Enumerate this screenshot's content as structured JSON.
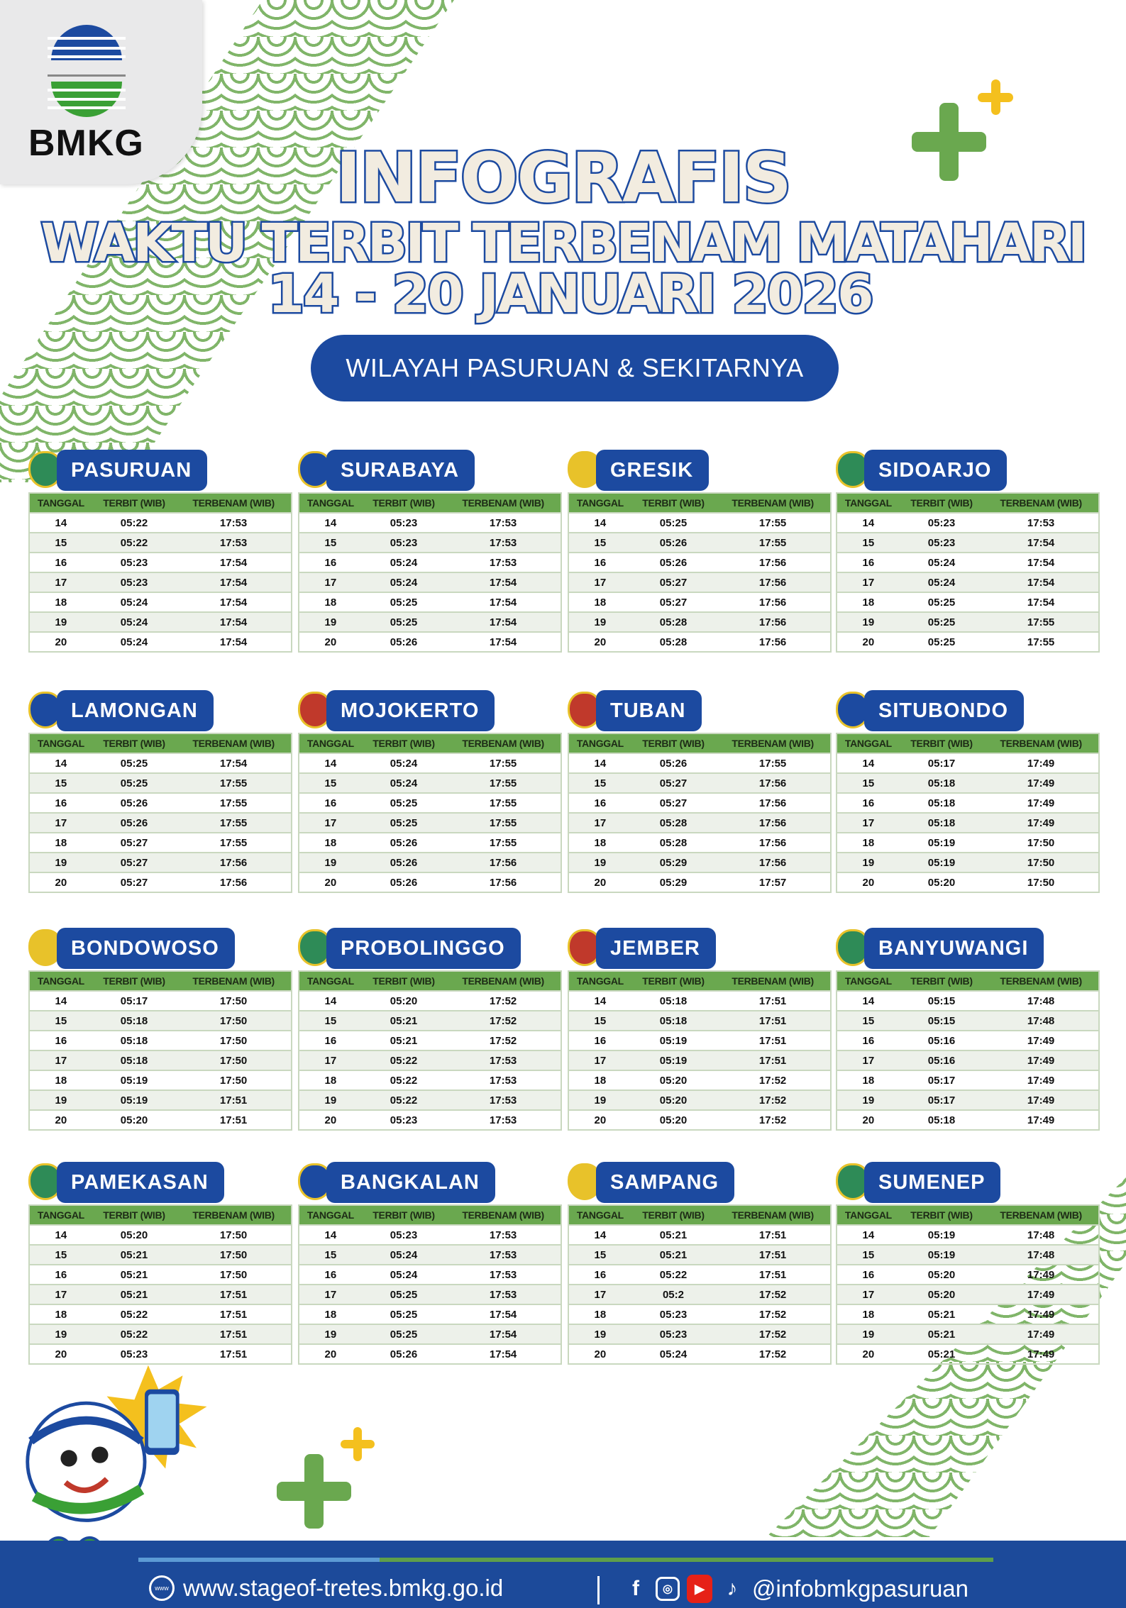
{
  "logo": {
    "text": "BMKG"
  },
  "title": {
    "line1": "INFOGRAFIS",
    "line2": "WAKTU TERBIT TERBENAM MATAHARI",
    "line3": "14 - 20 JANUARI  2026"
  },
  "region": "WILAYAH PASURUAN & SEKITARNYA",
  "columns": [
    "TANGGAL",
    "TERBIT (WIB)",
    "TERBENAM (WIB)"
  ],
  "colors": {
    "blue": "#1c4aa0",
    "green": "#6aa84f",
    "yellow": "#f4c01e"
  },
  "cities": [
    {
      "name": "PASURUAN",
      "rows": [
        [
          "14",
          "05:22",
          "17:53"
        ],
        [
          "15",
          "05:22",
          "17:53"
        ],
        [
          "16",
          "05:23",
          "17:54"
        ],
        [
          "17",
          "05:23",
          "17:54"
        ],
        [
          "18",
          "05:24",
          "17:54"
        ],
        [
          "19",
          "05:24",
          "17:54"
        ],
        [
          "20",
          "05:24",
          "17:54"
        ]
      ]
    },
    {
      "name": "SURABAYA",
      "rows": [
        [
          "14",
          "05:23",
          "17:53"
        ],
        [
          "15",
          "05:23",
          "17:53"
        ],
        [
          "16",
          "05:24",
          "17:53"
        ],
        [
          "17",
          "05:24",
          "17:54"
        ],
        [
          "18",
          "05:25",
          "17:54"
        ],
        [
          "19",
          "05:25",
          "17:54"
        ],
        [
          "20",
          "05:26",
          "17:54"
        ]
      ]
    },
    {
      "name": "GRESIK",
      "rows": [
        [
          "14",
          "05:25",
          "17:55"
        ],
        [
          "15",
          "05:26",
          "17:55"
        ],
        [
          "16",
          "05:26",
          "17:56"
        ],
        [
          "17",
          "05:27",
          "17:56"
        ],
        [
          "18",
          "05:27",
          "17:56"
        ],
        [
          "19",
          "05:28",
          "17:56"
        ],
        [
          "20",
          "05:28",
          "17:56"
        ]
      ]
    },
    {
      "name": "SIDOARJO",
      "rows": [
        [
          "14",
          "05:23",
          "17:53"
        ],
        [
          "15",
          "05:23",
          "17:54"
        ],
        [
          "16",
          "05:24",
          "17:54"
        ],
        [
          "17",
          "05:24",
          "17:54"
        ],
        [
          "18",
          "05:25",
          "17:54"
        ],
        [
          "19",
          "05:25",
          "17:55"
        ],
        [
          "20",
          "05:25",
          "17:55"
        ]
      ]
    },
    {
      "name": "LAMONGAN",
      "rows": [
        [
          "14",
          "05:25",
          "17:54"
        ],
        [
          "15",
          "05:25",
          "17:55"
        ],
        [
          "16",
          "05:26",
          "17:55"
        ],
        [
          "17",
          "05:26",
          "17:55"
        ],
        [
          "18",
          "05:27",
          "17:55"
        ],
        [
          "19",
          "05:27",
          "17:56"
        ],
        [
          "20",
          "05:27",
          "17:56"
        ]
      ]
    },
    {
      "name": "MOJOKERTO",
      "rows": [
        [
          "14",
          "05:24",
          "17:55"
        ],
        [
          "15",
          "05:24",
          "17:55"
        ],
        [
          "16",
          "05:25",
          "17:55"
        ],
        [
          "17",
          "05:25",
          "17:55"
        ],
        [
          "18",
          "05:26",
          "17:55"
        ],
        [
          "19",
          "05:26",
          "17:56"
        ],
        [
          "20",
          "05:26",
          "17:56"
        ]
      ]
    },
    {
      "name": "TUBAN",
      "rows": [
        [
          "14",
          "05:26",
          "17:55"
        ],
        [
          "15",
          "05:27",
          "17:56"
        ],
        [
          "16",
          "05:27",
          "17:56"
        ],
        [
          "17",
          "05:28",
          "17:56"
        ],
        [
          "18",
          "05:28",
          "17:56"
        ],
        [
          "19",
          "05:29",
          "17:56"
        ],
        [
          "20",
          "05:29",
          "17:57"
        ]
      ]
    },
    {
      "name": "SITUBONDO",
      "rows": [
        [
          "14",
          "05:17",
          "17:49"
        ],
        [
          "15",
          "05:18",
          "17:49"
        ],
        [
          "16",
          "05:18",
          "17:49"
        ],
        [
          "17",
          "05:18",
          "17:49"
        ],
        [
          "18",
          "05:19",
          "17:50"
        ],
        [
          "19",
          "05:19",
          "17:50"
        ],
        [
          "20",
          "05:20",
          "17:50"
        ]
      ]
    },
    {
      "name": "BONDOWOSO",
      "rows": [
        [
          "14",
          "05:17",
          "17:50"
        ],
        [
          "15",
          "05:18",
          "17:50"
        ],
        [
          "16",
          "05:18",
          "17:50"
        ],
        [
          "17",
          "05:18",
          "17:50"
        ],
        [
          "18",
          "05:19",
          "17:50"
        ],
        [
          "19",
          "05:19",
          "17:51"
        ],
        [
          "20",
          "05:20",
          "17:51"
        ]
      ]
    },
    {
      "name": "PROBOLINGGO",
      "rows": [
        [
          "14",
          "05:20",
          "17:52"
        ],
        [
          "15",
          "05:21",
          "17:52"
        ],
        [
          "16",
          "05:21",
          "17:52"
        ],
        [
          "17",
          "05:22",
          "17:53"
        ],
        [
          "18",
          "05:22",
          "17:53"
        ],
        [
          "19",
          "05:22",
          "17:53"
        ],
        [
          "20",
          "05:23",
          "17:53"
        ]
      ]
    },
    {
      "name": "JEMBER",
      "rows": [
        [
          "14",
          "05:18",
          "17:51"
        ],
        [
          "15",
          "05:18",
          "17:51"
        ],
        [
          "16",
          "05:19",
          "17:51"
        ],
        [
          "17",
          "05:19",
          "17:51"
        ],
        [
          "18",
          "05:20",
          "17:52"
        ],
        [
          "19",
          "05:20",
          "17:52"
        ],
        [
          "20",
          "05:20",
          "17:52"
        ]
      ]
    },
    {
      "name": "BANYUWANGI",
      "rows": [
        [
          "14",
          "05:15",
          "17:48"
        ],
        [
          "15",
          "05:15",
          "17:48"
        ],
        [
          "16",
          "05:16",
          "17:49"
        ],
        [
          "17",
          "05:16",
          "17:49"
        ],
        [
          "18",
          "05:17",
          "17:49"
        ],
        [
          "19",
          "05:17",
          "17:49"
        ],
        [
          "20",
          "05:18",
          "17:49"
        ]
      ]
    },
    {
      "name": "PAMEKASAN",
      "rows": [
        [
          "14",
          "05:20",
          "17:50"
        ],
        [
          "15",
          "05:21",
          "17:50"
        ],
        [
          "16",
          "05:21",
          "17:50"
        ],
        [
          "17",
          "05:21",
          "17:51"
        ],
        [
          "18",
          "05:22",
          "17:51"
        ],
        [
          "19",
          "05:22",
          "17:51"
        ],
        [
          "20",
          "05:23",
          "17:51"
        ]
      ]
    },
    {
      "name": "BANGKALAN",
      "rows": [
        [
          "14",
          "05:23",
          "17:53"
        ],
        [
          "15",
          "05:24",
          "17:53"
        ],
        [
          "16",
          "05:24",
          "17:53"
        ],
        [
          "17",
          "05:25",
          "17:53"
        ],
        [
          "18",
          "05:25",
          "17:54"
        ],
        [
          "19",
          "05:25",
          "17:54"
        ],
        [
          "20",
          "05:26",
          "17:54"
        ]
      ]
    },
    {
      "name": "SAMPANG",
      "rows": [
        [
          "14",
          "05:21",
          "17:51"
        ],
        [
          "15",
          "05:21",
          "17:51"
        ],
        [
          "16",
          "05:22",
          "17:51"
        ],
        [
          "17",
          "05:2",
          "17:52"
        ],
        [
          "18",
          "05:23",
          "17:52"
        ],
        [
          "19",
          "05:23",
          "17:52"
        ],
        [
          "20",
          "05:24",
          "17:52"
        ]
      ]
    },
    {
      "name": "SUMENEP",
      "rows": [
        [
          "14",
          "05:19",
          "17:48"
        ],
        [
          "15",
          "05:19",
          "17:48"
        ],
        [
          "16",
          "05:20",
          "17:49"
        ],
        [
          "17",
          "05:20",
          "17:49"
        ],
        [
          "18",
          "05:21",
          "17:49"
        ],
        [
          "19",
          "05:21",
          "17:49"
        ],
        [
          "20",
          "05:21",
          "17:49"
        ]
      ]
    }
  ],
  "footer": {
    "website": "www.stageof-tretes.bmkg.go.id",
    "globe_label": "www",
    "social_handle": "@infobmkgpasuruan",
    "social_icons": [
      "facebook-icon",
      "instagram-icon",
      "youtube-icon",
      "tiktok-icon"
    ]
  }
}
